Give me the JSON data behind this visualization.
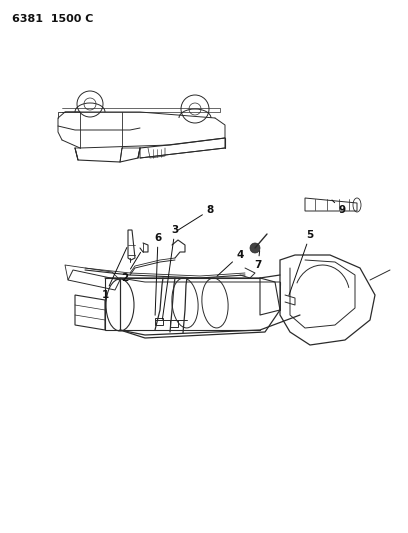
{
  "title": "6381  1500 C",
  "background_color": "#ffffff",
  "line_color": "#2a2a2a",
  "text_color": "#111111",
  "fig_width": 4.08,
  "fig_height": 5.33,
  "dpi": 100
}
